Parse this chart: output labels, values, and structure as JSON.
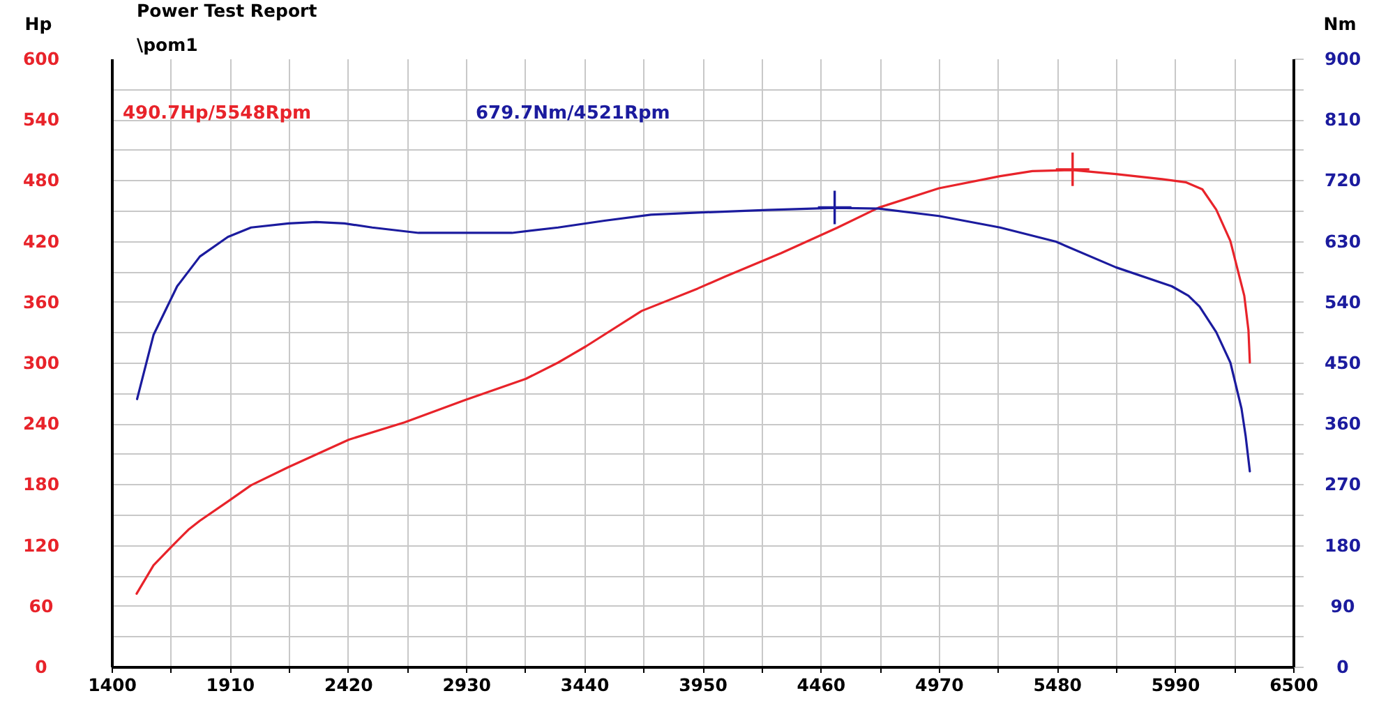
{
  "chart_data": {
    "type": "line",
    "title": "Power Test Report",
    "subtitle": "\\pom1",
    "ylabel": "Hp",
    "y2label": "Nm",
    "annotations": [
      "490.7Hp/5548Rpm",
      "679.7Nm/4521Rpm"
    ],
    "xlim": [
      1400,
      6500
    ],
    "xticks": [
      1400,
      {
        "value": 1655,
        "label": null
      },
      1910,
      {
        "value": 2165,
        "label": null
      },
      2420,
      {
        "value": 2675,
        "label": null
      },
      2930,
      {
        "value": 3185,
        "label": null
      },
      3440,
      {
        "value": 3695,
        "label": null
      },
      3950,
      {
        "value": 4205,
        "label": null
      },
      4460,
      {
        "value": 4715,
        "label": null
      },
      4970,
      {
        "value": 5225,
        "label": null
      },
      5480,
      {
        "value": 5735,
        "label": null
      },
      5990,
      {
        "value": 6245,
        "label": null
      },
      6500
    ],
    "ylim": [
      0,
      600
    ],
    "yticks": [
      0,
      {
        "value": 30,
        "label": null
      },
      60,
      {
        "value": 90,
        "label": null
      },
      120,
      {
        "value": 150,
        "label": null
      },
      180,
      {
        "value": 210,
        "label": null
      },
      240,
      {
        "value": 270,
        "label": null
      },
      300,
      {
        "value": 330,
        "label": null
      },
      360,
      {
        "value": 390,
        "label": null
      },
      420,
      {
        "value": 450,
        "label": null
      },
      480,
      {
        "value": 510,
        "label": null
      },
      540,
      {
        "value": 570,
        "label": null
      },
      600
    ],
    "y2lim": [
      0,
      900
    ],
    "y2ticks": [
      0,
      {
        "value": 45,
        "label": null
      },
      90,
      {
        "value": 135,
        "label": null
      },
      180,
      {
        "value": 225,
        "label": null
      },
      270,
      {
        "value": 315,
        "label": null
      },
      360,
      {
        "value": 405,
        "label": null
      },
      450,
      {
        "value": 495,
        "label": null
      },
      540,
      {
        "value": 585,
        "label": null
      },
      630,
      {
        "value": 675,
        "label": null
      },
      720,
      {
        "value": 765,
        "label": null
      },
      810,
      {
        "value": 855,
        "label": null
      },
      900
    ],
    "grid": true,
    "series": [
      {
        "color": "#e8232a",
        "x": [
          1508,
          1581,
          1661,
          1731,
          1781,
          1902,
          2002,
          2164,
          2424,
          2664,
          2925,
          3188,
          3327,
          3447,
          3688,
          3929,
          4049,
          4290,
          4531,
          4712,
          4971,
          5235,
          5374,
          5548,
          5735,
          5934,
          6036,
          6108,
          6168,
          6229,
          6289,
          6307,
          6313
        ],
        "values": [
          72,
          100,
          119,
          135,
          144,
          163,
          179,
          197,
          224,
          241,
          263,
          284,
          300,
          316,
          351,
          373,
          385,
          408,
          433,
          453,
          472,
          484,
          489,
          490,
          486,
          481,
          478,
          471,
          451,
          420,
          366,
          332,
          300
        ]
      },
      {
        "color": "#1b1b9e",
        "axis": "y2",
        "x": [
          1510,
          1581,
          1683,
          1781,
          1902,
          2002,
          2164,
          2283,
          2405,
          2525,
          2725,
          2925,
          3128,
          3327,
          3527,
          3728,
          3929,
          4230,
          4521,
          4712,
          4971,
          5235,
          5476,
          5735,
          5976,
          6048,
          6096,
          6168,
          6229,
          6277,
          6295,
          6313
        ],
        "values": [
          396,
          491,
          563,
          607,
          636,
          650,
          656,
          658,
          656,
          650,
          642,
          642,
          642,
          650,
          660,
          669,
          672,
          676,
          679,
          678,
          667,
          650,
          629,
          591,
          563,
          549,
          533,
          495,
          450,
          382,
          341,
          289
        ]
      },
      {
        "type": "scatter",
        "marker": "cross",
        "color": "#e8232a",
        "x": [
          5548
        ],
        "values": [
          490.7
        ]
      },
      {
        "type": "scatter",
        "marker": "cross",
        "axis": "y2",
        "color": "#1b1b9e",
        "x": [
          4521
        ],
        "values": [
          679.7
        ]
      }
    ]
  }
}
